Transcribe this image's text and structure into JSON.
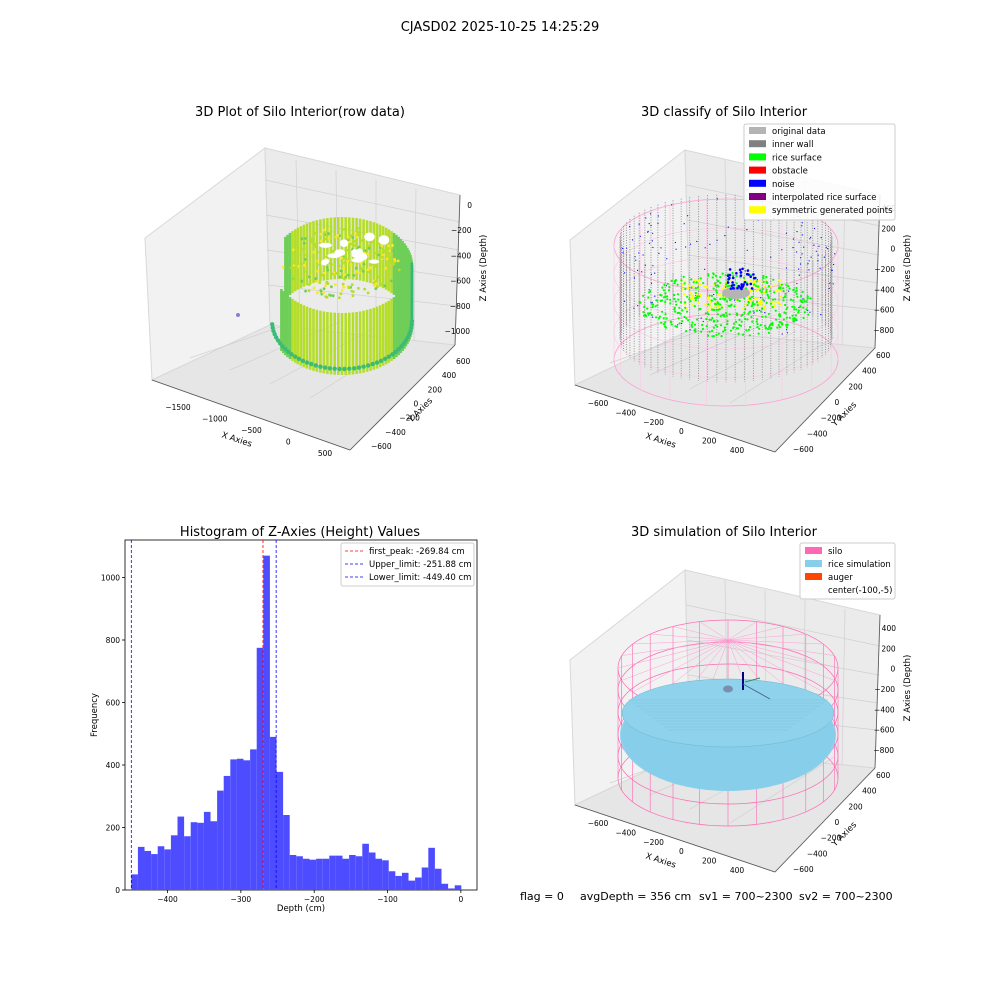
{
  "figure_title": "CJASD02 2025-10-25 14:25:29",
  "status": {
    "flag": "flag = 0",
    "avg_depth": "avgDepth = 356 cm",
    "sv1": "sv1 = 700~2300",
    "sv2": "sv2 = 700~2300"
  },
  "colors": {
    "original_data": "#b4b4b4",
    "inner_wall": "#808080",
    "rice_surface": "#00ff00",
    "obstacle": "#ff0000",
    "noise": "#0000ff",
    "interpolated_rice_surface": "#800080",
    "symmetric_generated_points": "#ffff00",
    "silo": "#ff69b4",
    "rice_simulation": "#87ceeb",
    "auger": "#ff4500",
    "histogram_bar": "#4d4dff",
    "first_peak_line": "#ff0000",
    "limit_line": "#0000ff"
  },
  "chart_data": [
    {
      "type": "scatter3d",
      "title": "3D Plot of Silo Interior(row data)",
      "xlabel": "X Axies",
      "ylabel": "Y Axies",
      "zlabel": "Z Axies (Depth)",
      "x_ticks": [
        "−1500",
        "−1000",
        "−500",
        "0",
        "500"
      ],
      "y_ticks": [
        "−600",
        "−400",
        "−200",
        "0",
        "200",
        "400",
        "600"
      ],
      "z_ticks": [
        "0",
        "−200",
        "−400",
        "−600",
        "−800",
        "−1000"
      ],
      "colormap": "viridis"
    },
    {
      "type": "scatter3d",
      "title": "3D classify of Silo Interior",
      "zlabel": "Z Axies (Depth)",
      "xlabel": "X Axies",
      "ylabel": "Y Axies",
      "x_ticks": [
        "−600",
        "−400",
        "−200",
        "0",
        "200",
        "400"
      ],
      "y_ticks": [
        "−600",
        "−400",
        "−200",
        "0",
        "200",
        "400",
        "600"
      ],
      "z_ticks": [
        "400",
        "200",
        "0",
        "−200",
        "−400",
        "−600",
        "−800"
      ],
      "legend_placement": "top-right",
      "legend": [
        {
          "label": "original data",
          "color": "#b4b4b4"
        },
        {
          "label": "inner wall",
          "color": "#808080"
        },
        {
          "label": "rice surface",
          "color": "#00ff00"
        },
        {
          "label": "obstacle",
          "color": "#ff0000"
        },
        {
          "label": "noise",
          "color": "#0000ff"
        },
        {
          "label": "interpolated rice surface",
          "color": "#800080"
        },
        {
          "label": "symmetric generated points",
          "color": "#ffff00"
        }
      ]
    },
    {
      "type": "bar",
      "title": "Histogram of Z-Axies (Height) Values",
      "xlabel": "Depth (cm)",
      "ylabel": "Frequency",
      "xlim": [
        -458,
        22
      ],
      "ylim": [
        0,
        1120
      ],
      "x_ticks": [
        -400,
        -300,
        -200,
        -100,
        0
      ],
      "x_tick_labels": [
        "−400",
        "−300",
        "−200",
        "−100",
        "0"
      ],
      "y_ticks": [
        0,
        200,
        400,
        600,
        800,
        1000
      ],
      "y_tick_labels": [
        "0",
        "200",
        "400",
        "600",
        "800",
        "1000"
      ],
      "bin_start": -449.4,
      "bin_width": 9.0,
      "values": [
        50,
        138,
        125,
        115,
        140,
        130,
        175,
        235,
        172,
        217,
        215,
        250,
        220,
        318,
        365,
        418,
        420,
        415,
        450,
        775,
        1070,
        490,
        378,
        240,
        112,
        108,
        100,
        97,
        100,
        100,
        110,
        110,
        100,
        112,
        108,
        148,
        120,
        100,
        95,
        60,
        45,
        55,
        30,
        40,
        72,
        135,
        68,
        20,
        5,
        15
      ],
      "legend_placement": "top-right",
      "lines": [
        {
          "name": "first_peak: -269.84 cm",
          "x": -269.84,
          "color": "#ff0000"
        },
        {
          "name": "Upper_limit: -251.88 cm",
          "x": -251.88,
          "color": "#0000ff"
        },
        {
          "name": "Lower_limit: -449.40 cm",
          "x": -449.4,
          "color": "#0000ff"
        }
      ]
    },
    {
      "type": "scatter3d",
      "title": "3D simulation of Silo Interior",
      "xlabel": "X Axies",
      "ylabel": "Y Axies",
      "zlabel": "Z Axies (Depth)",
      "x_ticks": [
        "−600",
        "−400",
        "−200",
        "0",
        "200",
        "400"
      ],
      "y_ticks": [
        "−600",
        "−400",
        "−200",
        "0",
        "200",
        "400",
        "600"
      ],
      "z_ticks": [
        "400",
        "200",
        "0",
        "−200",
        "−400",
        "−600",
        "−800"
      ],
      "legend_placement": "top-right",
      "legend": [
        {
          "label": "silo",
          "color": "#ff69b4"
        },
        {
          "label": "rice simulation",
          "color": "#87ceeb"
        },
        {
          "label": "auger",
          "color": "#ff4500"
        },
        {
          "label": "center(-100,-5)",
          "color": ""
        }
      ]
    }
  ]
}
